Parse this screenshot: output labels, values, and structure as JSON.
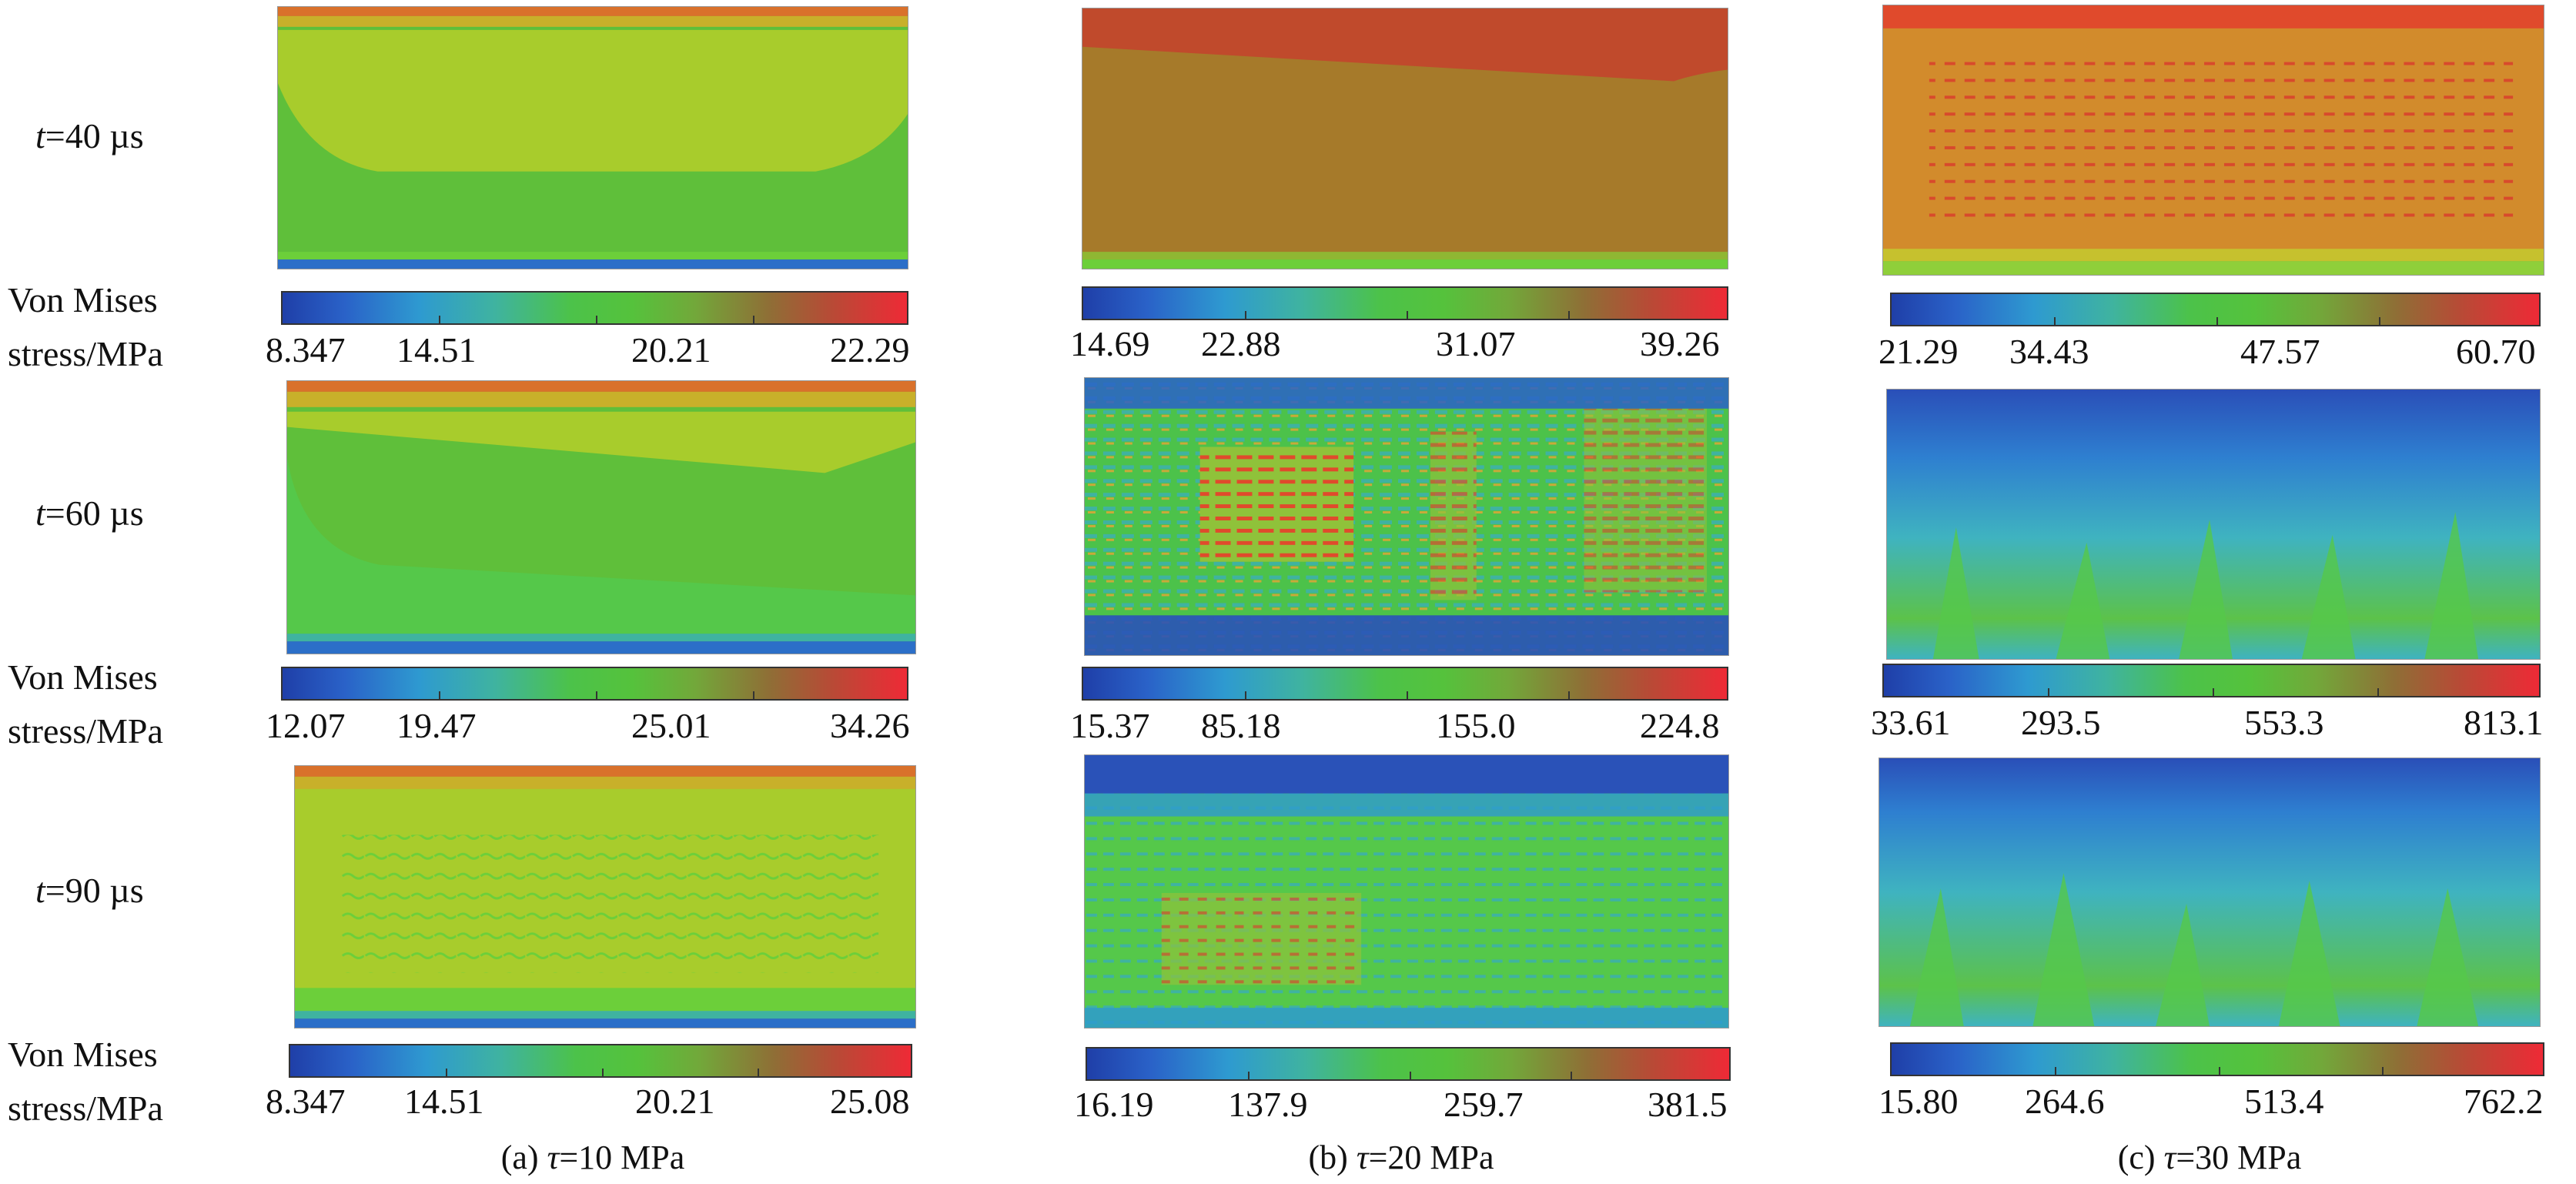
{
  "rows": [
    {
      "time_label_prefix": "t",
      "time_label_rest": "=40 µs"
    },
    {
      "time_label_prefix": "t",
      "time_label_rest": "=60 µs"
    },
    {
      "time_label_prefix": "t",
      "time_label_rest": "=90 µs"
    }
  ],
  "colorbar_title_line1": "Von Mises",
  "colorbar_title_line2": "stress/MPa",
  "colorbars": [
    [
      {
        "ticks": [
          "8.347",
          "14.51",
          "20.21",
          "22.29"
        ]
      },
      {
        "ticks": [
          "14.69",
          "22.88",
          "31.07",
          "39.26"
        ]
      },
      {
        "ticks": [
          "21.29",
          "34.43",
          "47.57",
          "60.70"
        ]
      }
    ],
    [
      {
        "ticks": [
          "12.07",
          "19.47",
          "25.01",
          "34.26"
        ]
      },
      {
        "ticks": [
          "15.37",
          "85.18",
          "155.0",
          "224.8"
        ]
      },
      {
        "ticks": [
          "33.61",
          "293.5",
          "553.3",
          "813.1"
        ]
      }
    ],
    [
      {
        "ticks": [
          "8.347",
          "14.51",
          "20.21",
          "25.08"
        ]
      },
      {
        "ticks": [
          "16.19",
          "137.9",
          "259.7",
          "381.5"
        ]
      },
      {
        "ticks": [
          "15.80",
          "264.6",
          "513.4",
          "762.2"
        ]
      }
    ]
  ],
  "captions": [
    {
      "prefix": "(a) ",
      "symbol": "τ",
      "rest": "=10 MPa"
    },
    {
      "prefix": "(b) ",
      "symbol": "τ",
      "rest": "=20 MPa"
    },
    {
      "prefix": "(c) ",
      "symbol": "τ",
      "rest": "=30 MPa"
    }
  ],
  "colormap": [
    "#1f3fa8",
    "#2e9ad0",
    "#4cc24a",
    "#8f6e36",
    "#ee2a36"
  ]
}
